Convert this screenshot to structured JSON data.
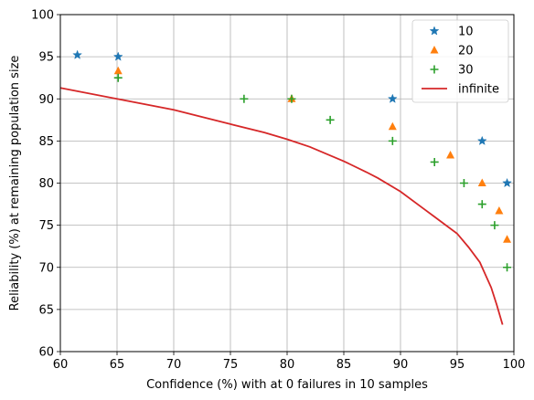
{
  "chart_data": {
    "type": "scatter",
    "xlabel": "Confidence (%) with at 0 failures in 10 samples",
    "ylabel": "Reliability (%) at remaining population size",
    "xlim": [
      60,
      100
    ],
    "ylim": [
      60,
      100
    ],
    "xticks": [
      60,
      65,
      70,
      75,
      80,
      85,
      90,
      95,
      100
    ],
    "yticks": [
      60,
      65,
      70,
      75,
      80,
      85,
      90,
      95,
      100
    ],
    "grid": true,
    "legend_position": "top-right",
    "series": [
      {
        "name": "10",
        "kind": "scatter",
        "marker": "star",
        "color": "#1f77b4",
        "points": [
          [
            61.5,
            95.2
          ],
          [
            65.1,
            95.0
          ],
          [
            89.3,
            90.0
          ],
          [
            97.2,
            85.0
          ],
          [
            99.4,
            80.0
          ]
        ]
      },
      {
        "name": "20",
        "kind": "scatter",
        "marker": "triangle",
        "color": "#ff7f0e",
        "points": [
          [
            65.1,
            93.3
          ],
          [
            80.4,
            90.0
          ],
          [
            89.3,
            86.7
          ],
          [
            94.4,
            83.3
          ],
          [
            97.2,
            80.0
          ],
          [
            98.7,
            76.7
          ],
          [
            99.4,
            73.3
          ]
        ]
      },
      {
        "name": "30",
        "kind": "scatter",
        "marker": "plus",
        "color": "#2ca02c",
        "points": [
          [
            65.1,
            92.5
          ],
          [
            76.2,
            90.0
          ],
          [
            80.4,
            90.0
          ],
          [
            83.8,
            87.5
          ],
          [
            89.3,
            85.0
          ],
          [
            93.0,
            82.5
          ],
          [
            95.6,
            80.0
          ],
          [
            97.2,
            77.5
          ],
          [
            98.3,
            75.0
          ],
          [
            99.4,
            70.0
          ]
        ]
      },
      {
        "name": "infinite",
        "kind": "line",
        "color": "#d62728",
        "points": [
          [
            60.0,
            91.3
          ],
          [
            65.0,
            90.0
          ],
          [
            70.0,
            88.7
          ],
          [
            75.0,
            87.0
          ],
          [
            78.0,
            86.0
          ],
          [
            80.0,
            85.2
          ],
          [
            82.0,
            84.3
          ],
          [
            85.0,
            82.6
          ],
          [
            87.0,
            81.3
          ],
          [
            88.0,
            80.6
          ],
          [
            90.0,
            79.0
          ],
          [
            92.0,
            77.0
          ],
          [
            93.0,
            76.0
          ],
          [
            94.0,
            75.0
          ],
          [
            95.0,
            74.0
          ],
          [
            96.0,
            72.4
          ],
          [
            97.0,
            70.6
          ],
          [
            98.0,
            67.6
          ],
          [
            98.5,
            65.5
          ],
          [
            99.0,
            63.2
          ]
        ]
      }
    ]
  }
}
